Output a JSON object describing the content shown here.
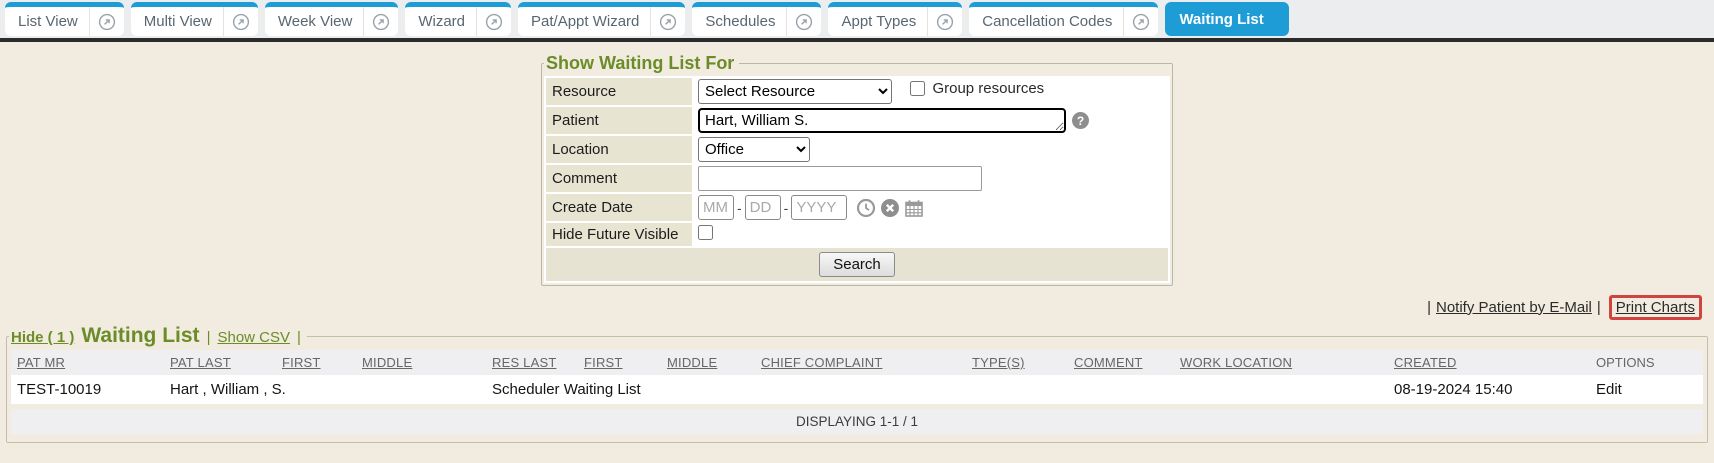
{
  "colors": {
    "tab_blue": "#1e9cd6",
    "olive_green": "#6b8c28",
    "highlight_red": "#d0433e",
    "page_beige": "#f1ecdf"
  },
  "tab_bar": {
    "tabs": [
      {
        "label": "List View",
        "popout": true,
        "active": false
      },
      {
        "label": "Multi View",
        "popout": true,
        "active": false
      },
      {
        "label": "Week View",
        "popout": true,
        "active": false
      },
      {
        "label": "Wizard",
        "popout": true,
        "active": false
      },
      {
        "label": "Pat/Appt Wizard",
        "popout": true,
        "active": false
      },
      {
        "label": "Schedules",
        "popout": true,
        "active": false
      },
      {
        "label": "Appt Types",
        "popout": true,
        "active": false
      },
      {
        "label": "Cancellation Codes",
        "popout": true,
        "active": false
      },
      {
        "label": "Waiting List",
        "popout": false,
        "active": true
      }
    ]
  },
  "filter_form": {
    "legend": "Show Waiting List For",
    "resource": {
      "label": "Resource",
      "selected_option": "Select Resource",
      "group_checkbox_label": "Group resources",
      "group_checked": false
    },
    "patient": {
      "label": "Patient",
      "value": "Hart, William S.",
      "help_icon": "?"
    },
    "location": {
      "label": "Location",
      "selected_option": "Office"
    },
    "comment": {
      "label": "Comment",
      "value": ""
    },
    "create_date": {
      "label": "Create Date",
      "month_placeholder": "MM",
      "day_placeholder": "DD",
      "year_placeholder": "YYYY",
      "separator": "-"
    },
    "hide_future": {
      "label": "Hide Future Visible",
      "checked": false
    },
    "search_button": "Search"
  },
  "action_links": {
    "separator": "|",
    "notify_label": "Notify Patient by E-Mail",
    "print_label": "Print Charts"
  },
  "waiting_list": {
    "hide_link": "Hide ( 1 )",
    "title": "Waiting List",
    "separator": "|",
    "show_csv_link": "Show CSV",
    "headers": [
      {
        "label": "PAT MR",
        "sortable": true
      },
      {
        "label": "PAT LAST",
        "sortable": true
      },
      {
        "label": "FIRST",
        "sortable": true
      },
      {
        "label": "MIDDLE",
        "sortable": true
      },
      {
        "label": "RES LAST",
        "sortable": true
      },
      {
        "label": "FIRST",
        "sortable": true
      },
      {
        "label": "MIDDLE",
        "sortable": true
      },
      {
        "label": "CHIEF COMPLAINT",
        "sortable": true
      },
      {
        "label": "TYPE(S)",
        "sortable": true
      },
      {
        "label": "COMMENT",
        "sortable": true
      },
      {
        "label": "WORK LOCATION",
        "sortable": true
      },
      {
        "label": "CREATED",
        "sortable": true
      },
      {
        "label": "OPTIONS",
        "sortable": false
      }
    ],
    "rows": [
      {
        "cells": [
          {
            "name": "pat-mr",
            "text": "TEST-10019",
            "colspan": 1,
            "interactable": false
          },
          {
            "name": "patient-name",
            "text": "Hart , William , S.",
            "colspan": 3,
            "interactable": false
          },
          {
            "name": "resource-name",
            "text": "Scheduler Waiting List",
            "colspan": 3,
            "interactable": false
          },
          {
            "name": "chief-complaint",
            "text": "",
            "colspan": 1,
            "interactable": false
          },
          {
            "name": "types",
            "text": "",
            "colspan": 1,
            "interactable": false
          },
          {
            "name": "comment",
            "text": "",
            "colspan": 1,
            "interactable": false
          },
          {
            "name": "work-location",
            "text": "",
            "colspan": 1,
            "interactable": false
          },
          {
            "name": "created",
            "text": "08-19-2024 15:40",
            "colspan": 1,
            "interactable": false
          },
          {
            "name": "options",
            "text": "Edit",
            "colspan": 1,
            "interactable": true
          }
        ]
      }
    ],
    "footer_text": "DISPLAYING 1-1 / 1"
  }
}
